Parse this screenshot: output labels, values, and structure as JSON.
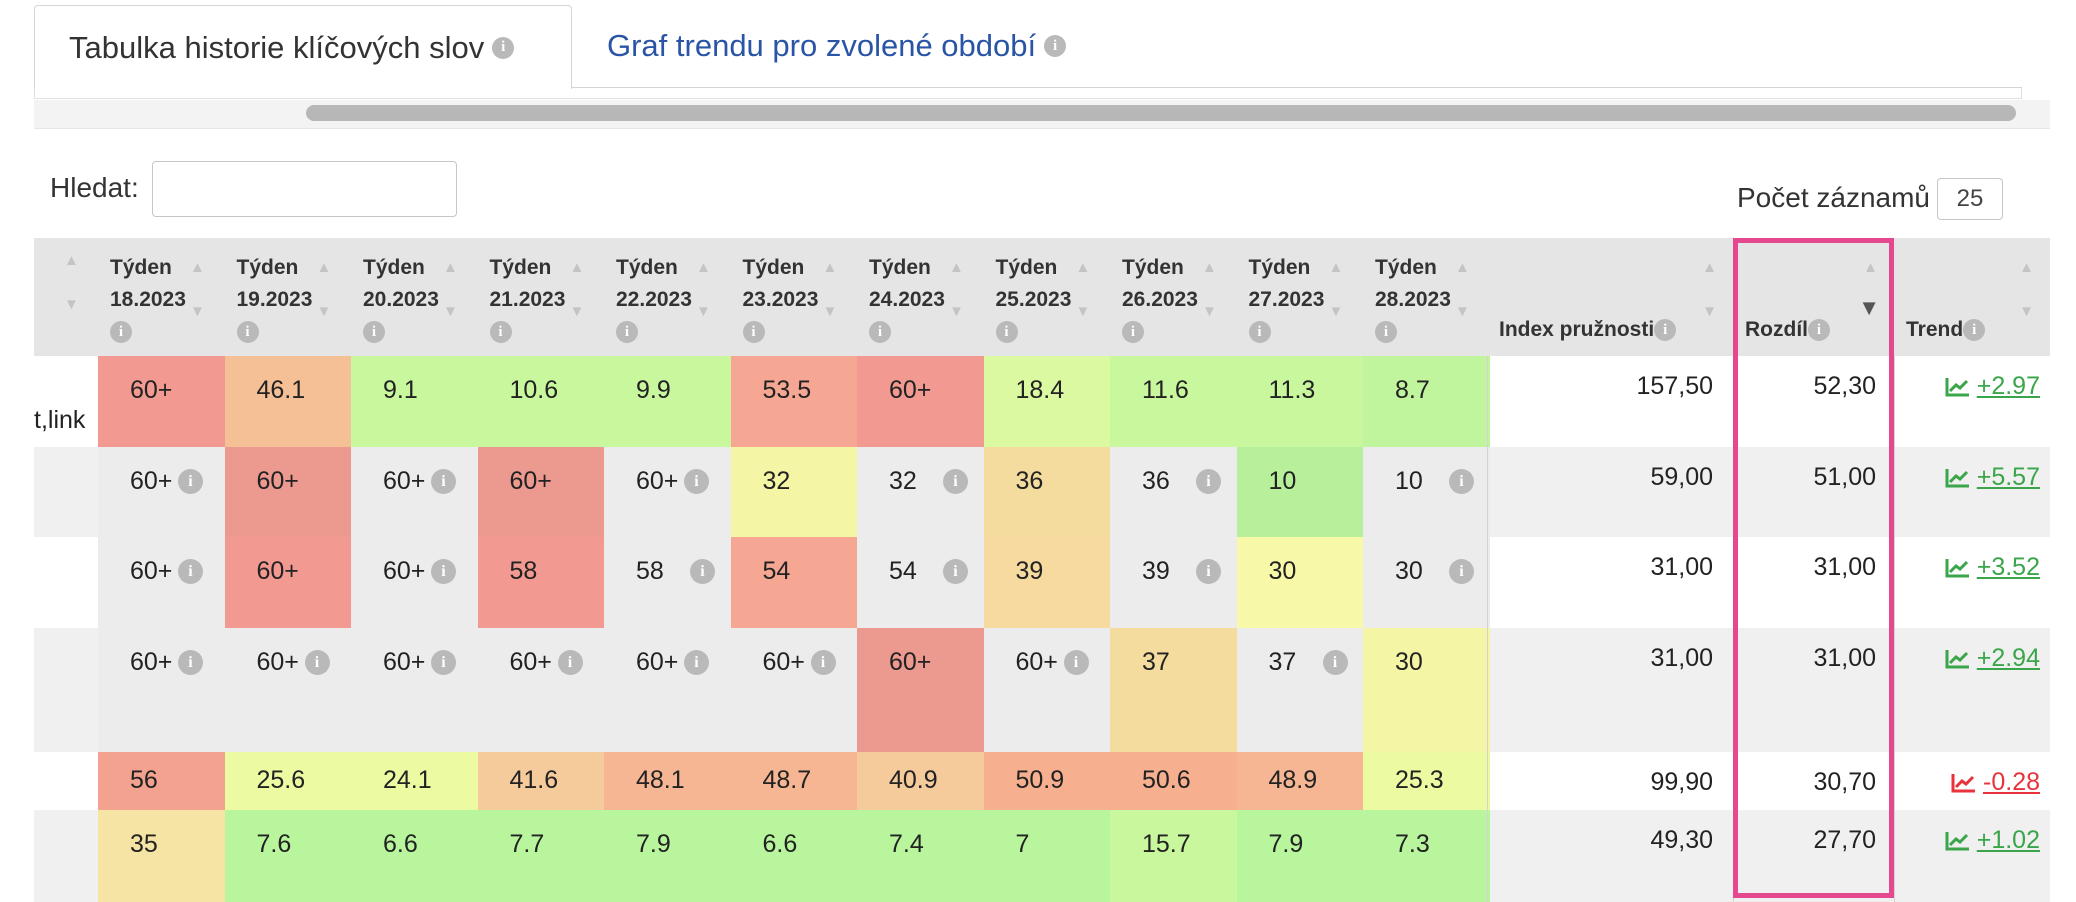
{
  "tabs": [
    {
      "label": "Tabulka historie klíčových slov",
      "active": true
    },
    {
      "label": "Graf trendu pro zvolené období",
      "active": false
    }
  ],
  "search": {
    "label": "Hledat:",
    "value": ""
  },
  "page_size": {
    "label": "Počet záznamů",
    "value": "25"
  },
  "columns": {
    "weeks": [
      {
        "title": "Týden",
        "week": "18.2023"
      },
      {
        "title": "Týden",
        "week": "19.2023"
      },
      {
        "title": "Týden",
        "week": "20.2023"
      },
      {
        "title": "Týden",
        "week": "21.2023"
      },
      {
        "title": "Týden",
        "week": "22.2023"
      },
      {
        "title": "Týden",
        "week": "23.2023"
      },
      {
        "title": "Týden",
        "week": "24.2023"
      },
      {
        "title": "Týden",
        "week": "25.2023"
      },
      {
        "title": "Týden",
        "week": "26.2023"
      },
      {
        "title": "Týden",
        "week": "27.2023"
      },
      {
        "title": "Týden",
        "week": "28.2023"
      }
    ],
    "index": "Index pružnosti",
    "diff": "Rozdíl",
    "trend": "Trend"
  },
  "rows": [
    {
      "keyword": "t,link",
      "cells": [
        [
          "60+",
          "#f29a91",
          false
        ],
        [
          "46.1",
          "#f6c097",
          false
        ],
        [
          "9.1",
          "#c8f79e",
          false
        ],
        [
          "10.6",
          "#c8f79e",
          false
        ],
        [
          "9.9",
          "#c8f79e",
          false
        ],
        [
          "53.5",
          "#f5a793",
          false
        ],
        [
          "60+",
          "#f29a91",
          false
        ],
        [
          "18.4",
          "#dbf9a0",
          false
        ],
        [
          "11.6",
          "#c8f79e",
          false
        ],
        [
          "11.3",
          "#c8f79e",
          false
        ],
        [
          "8.7",
          "#c1f59d",
          false
        ]
      ],
      "index": "157,50",
      "diff": "52,30",
      "trend": "+2.97",
      "dir": "up"
    },
    {
      "keyword": "",
      "cells": [
        [
          "60+",
          "",
          true
        ],
        [
          "60+",
          "#ec9990",
          false
        ],
        [
          "60+",
          "",
          true
        ],
        [
          "60+",
          "#ec9990",
          false
        ],
        [
          "60+",
          "",
          true
        ],
        [
          "32",
          "#f5f5a6",
          false
        ],
        [
          "32",
          "",
          true
        ],
        [
          "36",
          "#f4dc9e",
          false
        ],
        [
          "36",
          "",
          true
        ],
        [
          "10",
          "#b8ef9a",
          false
        ],
        [
          "10",
          "",
          true
        ]
      ],
      "index": "59,00",
      "diff": "51,00",
      "trend": "+5.57",
      "dir": "up"
    },
    {
      "keyword": "",
      "cells": [
        [
          "60+",
          "",
          true
        ],
        [
          "60+",
          "#f29a91",
          false
        ],
        [
          "60+",
          "",
          true
        ],
        [
          "58",
          "#f29a91",
          false
        ],
        [
          "58",
          "",
          true
        ],
        [
          "54",
          "#f5a793",
          false
        ],
        [
          "54",
          "",
          true
        ],
        [
          "39",
          "#f6daa0",
          false
        ],
        [
          "39",
          "",
          true
        ],
        [
          "30",
          "#f7f9a8",
          false
        ],
        [
          "30",
          "",
          true
        ]
      ],
      "index": "31,00",
      "diff": "31,00",
      "trend": "+3.52",
      "dir": "up"
    },
    {
      "keyword": "",
      "cells": [
        [
          "60+",
          "",
          true
        ],
        [
          "60+",
          "",
          true
        ],
        [
          "60+",
          "",
          true
        ],
        [
          "60+",
          "",
          true
        ],
        [
          "60+",
          "",
          true
        ],
        [
          "60+",
          "",
          true
        ],
        [
          "60+",
          "#ec9990",
          false
        ],
        [
          "60+",
          "",
          true
        ],
        [
          "37",
          "#f4dc9e",
          false
        ],
        [
          "37",
          "",
          true
        ],
        [
          "30",
          "#f5f5a6",
          false
        ]
      ],
      "index": "31,00",
      "diff": "31,00",
      "trend": "+2.94",
      "dir": "up"
    },
    {
      "keyword": "",
      "cells": [
        [
          "56",
          "#f4a290",
          false
        ],
        [
          "25.6",
          "#ecfaa2",
          false
        ],
        [
          "24.1",
          "#ecfaa2",
          false
        ],
        [
          "41.6",
          "#f6cb9b",
          false
        ],
        [
          "48.1",
          "#f6b693",
          false
        ],
        [
          "48.7",
          "#f6b693",
          false
        ],
        [
          "40.9",
          "#f6cb9b",
          false
        ],
        [
          "50.9",
          "#f6b08f",
          false
        ],
        [
          "50.6",
          "#f6b08f",
          false
        ],
        [
          "48.9",
          "#f6b693",
          false
        ],
        [
          "25.3",
          "#ecfaa2",
          false
        ]
      ],
      "index": "99,90",
      "diff": "30,70",
      "trend": "-0.28",
      "dir": "down"
    },
    {
      "keyword": "",
      "cells": [
        [
          "35",
          "#f5e4a3",
          false
        ],
        [
          "7.6",
          "#b8f59c",
          false
        ],
        [
          "6.6",
          "#b8f59c",
          false
        ],
        [
          "7.7",
          "#b8f59c",
          false
        ],
        [
          "7.9",
          "#b8f59c",
          false
        ],
        [
          "6.6",
          "#b8f59c",
          false
        ],
        [
          "7.4",
          "#b8f59c",
          false
        ],
        [
          "7",
          "#b8f59c",
          false
        ],
        [
          "15.7",
          "#c8f79e",
          false
        ],
        [
          "7.9",
          "#b8f59c",
          false
        ],
        [
          "7.3",
          "#b8f59c",
          false
        ]
      ],
      "index": "49,30",
      "diff": "27,70",
      "trend": "+1.02",
      "dir": "up"
    }
  ]
}
